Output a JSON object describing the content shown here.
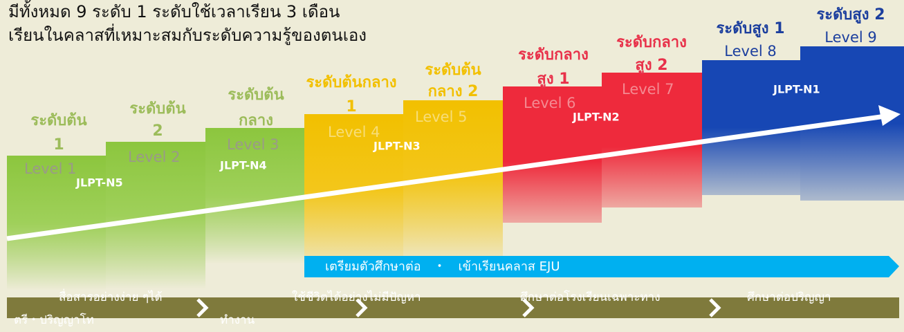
{
  "header": {
    "lines": [
      "มีทั้งหมด 9 ระดับ 1 ระดับใช้เวลาเรียน 3 เดือน",
      "เรียนในคลาสที่เหมาะสมกับระดับความรู้ของตนเอง"
    ]
  },
  "levels": [
    {
      "name": [
        "ระดับต้น",
        "1"
      ],
      "level": "Level 1"
    },
    {
      "name": [
        "ระดับต้น",
        "2"
      ],
      "level": "Level 2"
    },
    {
      "name": [
        "ระดับต้น",
        "กลาง"
      ],
      "level": "Level 3"
    },
    {
      "name": [
        "ระดับต้นกลาง",
        "1"
      ],
      "level": "Level 4"
    },
    {
      "name": [
        "ระดับต้น",
        "กลาง 2"
      ],
      "level": "Level 5"
    },
    {
      "name": [
        "ระดับกลาง",
        "สูง 1"
      ],
      "level": "Level 6"
    },
    {
      "name": [
        "ระดับกลาง",
        "สูง 2"
      ],
      "level": "Level 7"
    },
    {
      "name": [
        "ระดับสูง 1"
      ],
      "level": "Level 8"
    },
    {
      "name": [
        "ระดับสูง 2"
      ],
      "level": "Level 9"
    }
  ],
  "jlpt": [
    "JLPT-N5",
    "JLPT-N4",
    "JLPT-N3",
    "JLPT-N2",
    "JLPT-N1"
  ],
  "eju": "เตรียมตัวศึกษาต่อ　・　เข้าเรียนคลาส EJU",
  "goals": [
    "สื่อสารอย่างง่าย ๆได้",
    "ตรี・ปริญญาโท",
    "ทำงาน",
    "ใช้ชีวิตได้อย่างไม่มีปัญหา",
    "ศึกษาต่อโรงเรียนเฉพาะทาง",
    "ศึกษาต่อปริญญา"
  ]
}
